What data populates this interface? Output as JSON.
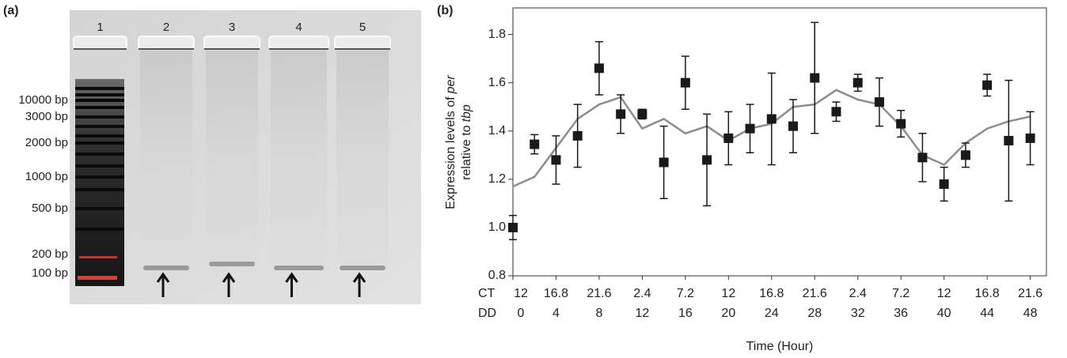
{
  "gel": {
    "label": "(a)",
    "lanes": [
      "1",
      "2",
      "3",
      "4",
      "5"
    ],
    "ladder": [
      "10000 bp",
      "3000 bp",
      "2000 bp",
      "1000 bp",
      "500 bp",
      "200 bp",
      "100 bp"
    ]
  },
  "chart_data": {
    "type": "scatter",
    "label": "(b)",
    "ylabel": [
      [
        "Expression levels of",
        "per"
      ],
      [
        "relative to",
        "tbp"
      ]
    ],
    "xlabel": "Time (Hour)",
    "xtick_rows": [
      "CT",
      "DD"
    ],
    "x": [
      0,
      2,
      4,
      6,
      8,
      10,
      12,
      14,
      16,
      18,
      20,
      22,
      24,
      26,
      28,
      30,
      32,
      34,
      36,
      38,
      40,
      42,
      44,
      46,
      48
    ],
    "values": [
      1.0,
      1.345,
      1.28,
      1.38,
      1.66,
      1.47,
      1.47,
      1.27,
      1.6,
      1.28,
      1.37,
      1.41,
      1.45,
      1.42,
      1.62,
      1.48,
      1.6,
      1.52,
      1.43,
      1.29,
      1.18,
      1.3,
      1.59,
      1.36,
      1.37
    ],
    "errors": [
      0.05,
      0.04,
      0.1,
      0.13,
      0.11,
      0.08,
      0.02,
      0.15,
      0.11,
      0.19,
      0.11,
      0.1,
      0.19,
      0.11,
      0.23,
      0.04,
      0.035,
      0.1,
      0.055,
      0.1,
      0.07,
      0.05,
      0.045,
      0.25,
      0.11
    ],
    "color": "#1a1a1a",
    "line_values": [
      1.17,
      1.21,
      1.33,
      1.45,
      1.51,
      1.54,
      1.41,
      1.45,
      1.39,
      1.42,
      1.36,
      1.41,
      1.43,
      1.5,
      1.51,
      1.57,
      1.53,
      1.51,
      1.42,
      1.3,
      1.26,
      1.35,
      1.41,
      1.44,
      1.46
    ],
    "line_color": "#8c8c8c",
    "xlim": [
      0,
      49.5
    ],
    "xticks": [
      0,
      4,
      8,
      12,
      16,
      20,
      24,
      28,
      32,
      36,
      40,
      44,
      48
    ],
    "ct_ticks": [
      "12",
      "16.8",
      "21.6",
      "2.4",
      "7.2",
      "12",
      "16.8",
      "21.6",
      "2.4",
      "7.2",
      "12",
      "16.8",
      "21.6"
    ],
    "ylim": [
      0.8,
      1.91
    ],
    "yticks": [
      0.8,
      {
        "value": 1,
        "label": "1.0"
      },
      1.2,
      1.4,
      1.6,
      1.8
    ]
  }
}
